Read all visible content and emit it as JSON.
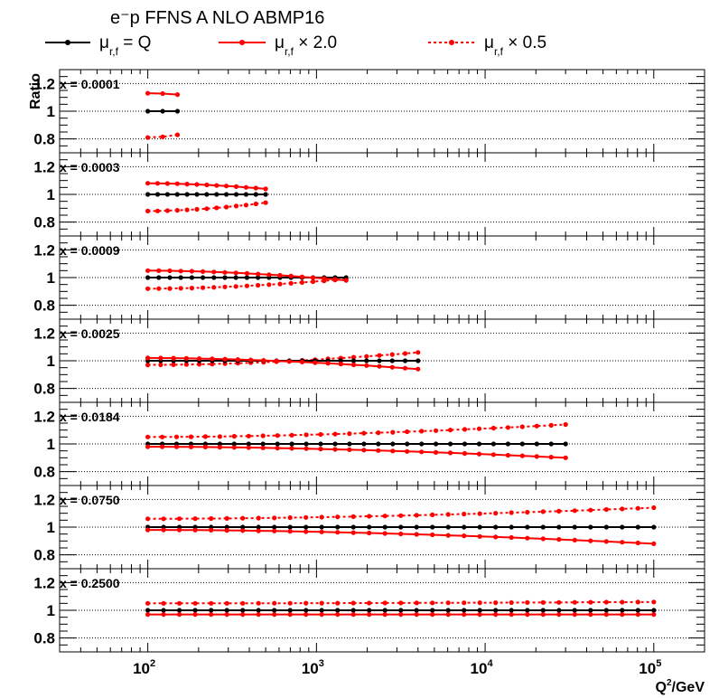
{
  "chart_data": {
    "type": "line",
    "title": "e⁻p FFNS A NLO ABMP16",
    "ylabel": "Ratio",
    "xlabel": "Q²/GeV",
    "xscale": "log",
    "xlim": [
      30,
      200000
    ],
    "ylim": [
      0.7,
      1.3
    ],
    "yticks": [
      "1.2",
      "1",
      "0.8"
    ],
    "xticks": [
      {
        "value": 100,
        "base": "10",
        "exp": "2"
      },
      {
        "value": 1000,
        "base": "10",
        "exp": "3"
      },
      {
        "value": 10000,
        "base": "10",
        "exp": "4"
      },
      {
        "value": 100000,
        "base": "10",
        "exp": "5"
      }
    ],
    "grid": "horizontal dotted at 1.2, 1, 0.8",
    "legend_position": "top",
    "legend": [
      {
        "series": "central",
        "label_main": "μ",
        "label_sub": "r,f",
        "label_rest": " = Q",
        "color": "#000000",
        "dash": "solid"
      },
      {
        "series": "up",
        "label_main": "μ",
        "label_sub": "r,f",
        "label_rest": " × 2.0",
        "color": "#ff0000",
        "dash": "solid"
      },
      {
        "series": "down",
        "label_main": "μ",
        "label_sub": "r,f",
        "label_rest": " × 0.5",
        "color": "#ff0000",
        "dash": "dotted"
      }
    ],
    "panels": [
      {
        "label": "x = 0.0001",
        "q2_min": 100,
        "q2_max": 150,
        "n_points": 3,
        "central": [
          1.0,
          1.0
        ],
        "up": [
          1.13,
          1.12
        ],
        "down": [
          0.81,
          0.83
        ]
      },
      {
        "label": "x = 0.0003",
        "q2_min": 100,
        "q2_max": 500,
        "n_points": 13,
        "central": [
          1.0,
          1.0
        ],
        "up": [
          1.08,
          1.04
        ],
        "down": [
          0.88,
          0.94
        ]
      },
      {
        "label": "x = 0.0009",
        "q2_min": 100,
        "q2_max": 1500,
        "n_points": 19,
        "central": [
          1.0,
          1.0
        ],
        "up": [
          1.05,
          0.98
        ],
        "down": [
          0.92,
          0.99
        ]
      },
      {
        "label": "x = 0.0025",
        "q2_min": 100,
        "q2_max": 4000,
        "n_points": 22,
        "central": [
          1.0,
          1.0
        ],
        "up": [
          1.02,
          0.94
        ],
        "down": [
          0.97,
          1.06
        ]
      },
      {
        "label": "x = 0.0184",
        "q2_min": 100,
        "q2_max": 30000,
        "n_points": 30,
        "central": [
          1.0,
          1.0
        ],
        "up": [
          0.98,
          0.9
        ],
        "down": [
          1.05,
          1.14
        ]
      },
      {
        "label": "x = 0.0750",
        "q2_min": 100,
        "q2_max": 100000,
        "n_points": 33,
        "central": [
          1.0,
          1.0
        ],
        "up": [
          0.98,
          0.88
        ],
        "down": [
          1.06,
          1.14
        ]
      },
      {
        "label": "x = 0.2500",
        "q2_min": 100,
        "q2_max": 100000,
        "n_points": 33,
        "central": [
          1.0,
          1.0
        ],
        "up": [
          0.97,
          0.97
        ],
        "down": [
          1.05,
          1.06
        ]
      }
    ]
  }
}
